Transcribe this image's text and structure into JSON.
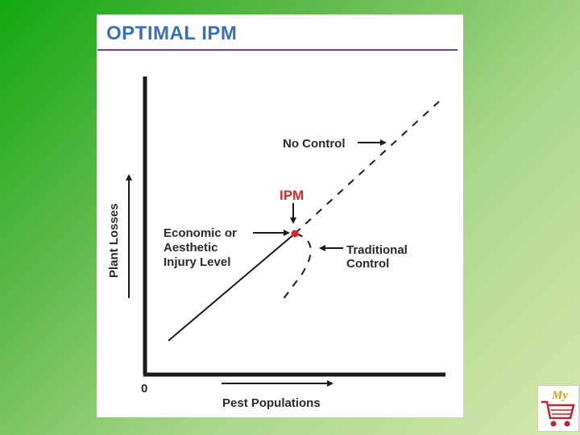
{
  "title": "OPTIMAL IPM",
  "y_axis_label": "Plant Losses",
  "x_axis_label": "Pest Populations",
  "origin_label": "0",
  "ipm_label": "IPM",
  "no_control_label": "No Control",
  "injury_level_lines": [
    "Economic or",
    "Aesthetic",
    "Injury Level"
  ],
  "traditional_control_lines": [
    "Traditional",
    "Control"
  ],
  "logo_text": "My",
  "colors": {
    "title": "#3a6fb8",
    "title_rule": "#7a3d8e",
    "ipm_point": "#d62a2a",
    "lines": "#1a1a1a"
  }
}
